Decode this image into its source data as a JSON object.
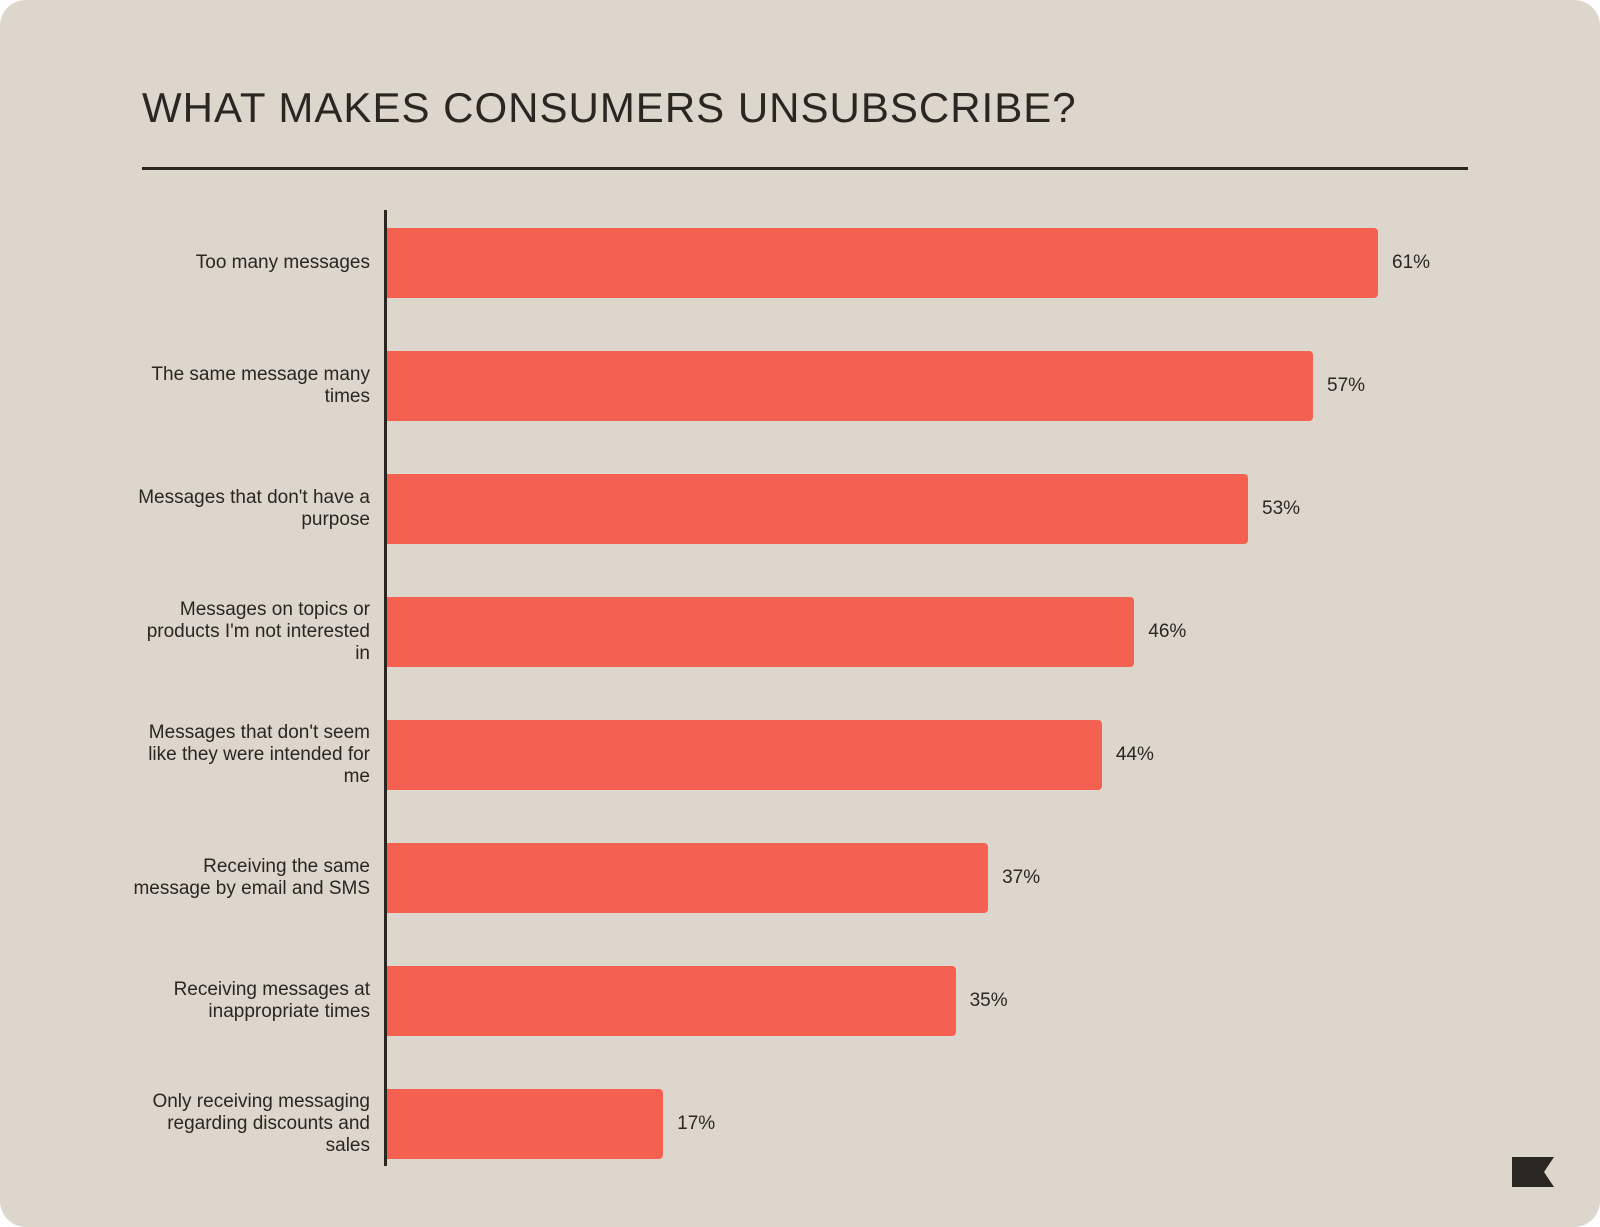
{
  "chart_data": {
    "type": "bar",
    "orientation": "horizontal",
    "title": "WHAT MAKES CONSUMERS UNSUBSCRIBE?",
    "categories": [
      "Too many messages",
      "The same message many times",
      "Messages that don't have a purpose",
      "Messages on topics or products I'm not interested in",
      "Messages that don't seem like they were intended for me",
      "Receiving the same message by email and SMS",
      "Receiving messages at inappropriate times",
      "Only receiving messaging regarding discounts and sales"
    ],
    "values": [
      61,
      57,
      53,
      46,
      44,
      37,
      35,
      17
    ],
    "value_labels": [
      "61%",
      "57%",
      "53%",
      "46%",
      "44%",
      "37%",
      "35%",
      "17%"
    ],
    "color": "#f46150",
    "xlim": [
      0,
      61
    ]
  }
}
